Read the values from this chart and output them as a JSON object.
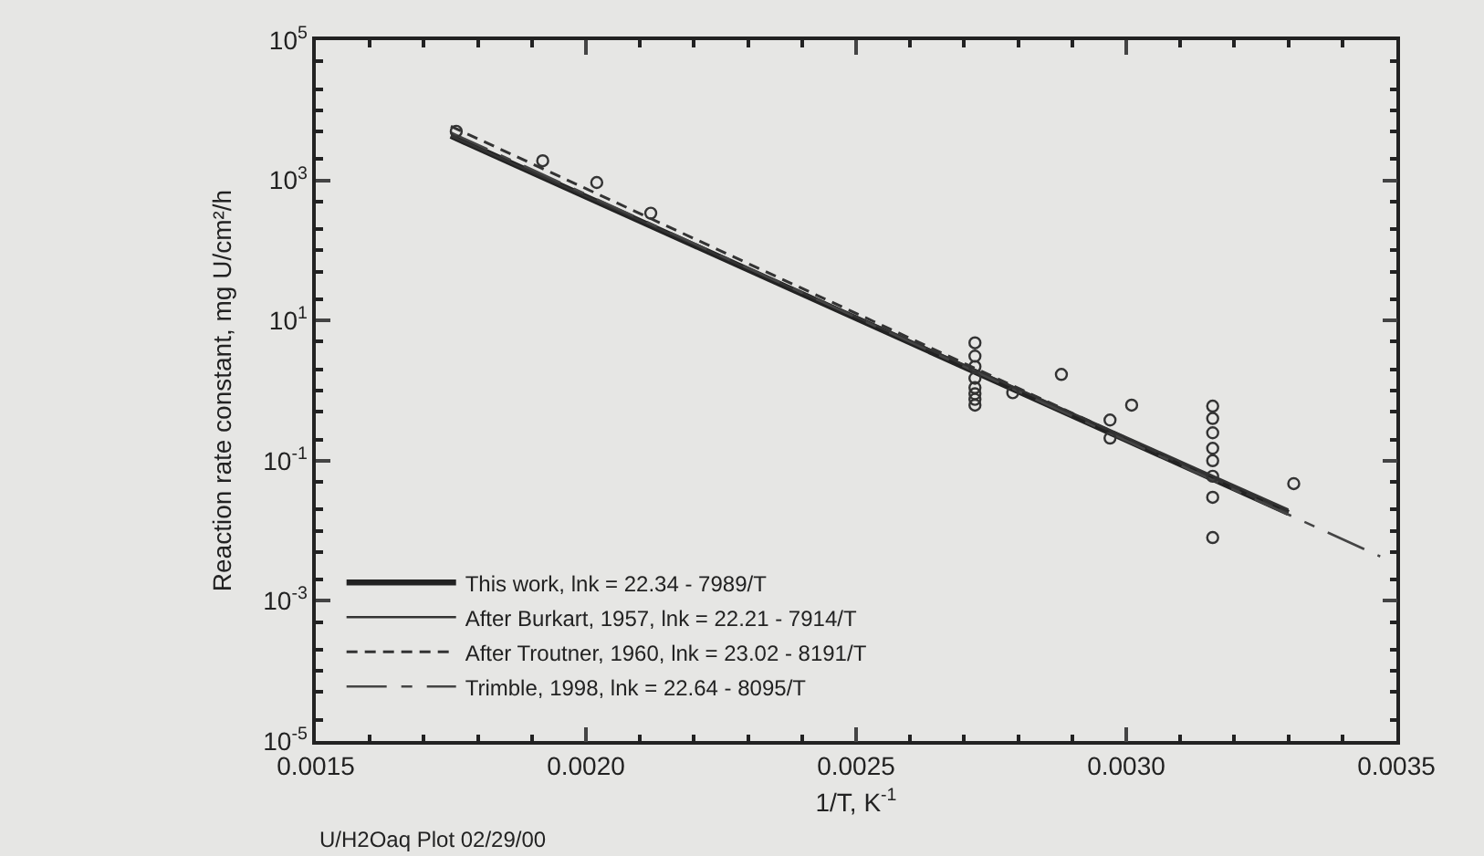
{
  "chart_data": {
    "type": "line",
    "xlabel": "1/T, K$^{-1}$",
    "ylabel": "Reaction rate constant, mg U/cm²/h",
    "annotations": [
      "U/H2Oaq Plot 02/29/00"
    ],
    "log": "y",
    "grid": false,
    "legend": "bottom left",
    "xlim": [
      0.0015,
      0.0035
    ],
    "xticks": [
      {
        "value": 0.0015,
        "label": "0.0015"
      },
      {
        "value": 0.002,
        "label": "0.0020"
      },
      {
        "value": 0.0025,
        "label": "0.0025"
      },
      {
        "value": 0.003,
        "label": "0.0030"
      },
      {
        "value": 0.0035,
        "label": "0.0035"
      }
    ],
    "ylim": [
      1e-05,
      100000
    ],
    "yticks": [
      {
        "value": 100000,
        "label": "10$^{5}$"
      },
      {
        "value": 1000,
        "label": "10$^{3}$"
      },
      {
        "value": 10,
        "label": "10$^{1}$"
      },
      {
        "value": 0.1,
        "label": "10$^{-1}$"
      },
      {
        "value": 0.001,
        "label": "10$^{-3}$"
      },
      {
        "value": 1e-05,
        "label": "10$^{-5}$"
      }
    ],
    "series": [
      {
        "name": "This work, lnk = 22.34 - 7989/T",
        "color": "#222222",
        "line_style": "solid",
        "marker": "none",
        "x": [
          0.00175,
          0.0033
        ],
        "values": [
          4300,
          0.018
        ]
      },
      {
        "name": "After Burkart, 1957, lnk = 22.21 - 7914/T",
        "color": "#333333",
        "line_style": "solid",
        "marker": "none",
        "x": [
          0.00175,
          0.0033
        ],
        "values": [
          4300,
          0.02
        ]
      },
      {
        "name": "After Troutner, 1960, lnk = 23.02 - 8191/T",
        "color": "#333333",
        "line_style": "dashed",
        "marker": "none",
        "x": [
          0.00175,
          0.0033
        ],
        "values": [
          5900,
          0.018
        ]
      },
      {
        "name": "Trimble, 1998, lnk = 22.64 - 8095/T",
        "color": "#444444",
        "line_style": "dashed",
        "marker": "none",
        "x": [
          0.00175,
          0.00347
        ],
        "values": [
          4800,
          0.0043
        ]
      },
      {
        "type": "scatter",
        "color": "#333333",
        "marker": "circle",
        "x": [
          0.00176,
          0.00192,
          0.00202,
          0.00212,
          0.00272,
          0.00272,
          0.00272,
          0.00272,
          0.00272,
          0.00272,
          0.00272,
          0.00272,
          0.00279,
          0.00288,
          0.00297,
          0.00297,
          0.00301,
          0.00316,
          0.00316,
          0.00316,
          0.00316,
          0.00316,
          0.00316,
          0.00316,
          0.00316,
          0.00331
        ],
        "values": [
          5000,
          1900,
          930,
          340,
          4.8,
          3.1,
          2.2,
          1.5,
          1.1,
          0.9,
          0.75,
          0.62,
          0.93,
          1.7,
          0.38,
          0.21,
          0.62,
          0.6,
          0.4,
          0.25,
          0.15,
          0.1,
          0.06,
          0.03,
          0.008,
          0.047
        ]
      }
    ]
  }
}
